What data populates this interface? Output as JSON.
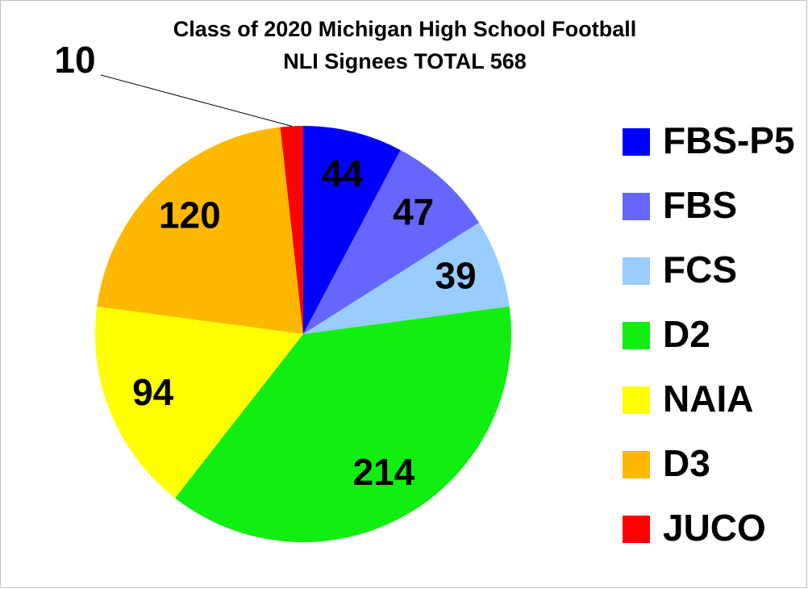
{
  "chart_data": {
    "type": "pie",
    "title": "Class of 2020 Michigan High School Football",
    "subtitle": "NLI Signees TOTAL 568",
    "categories": [
      "FBS-P5",
      "FBS",
      "FCS",
      "D2",
      "NAIA",
      "D3",
      "JUCO"
    ],
    "values": [
      44,
      47,
      39,
      214,
      94,
      120,
      10
    ],
    "colors": [
      "#0000ff",
      "#6666ff",
      "#99ccff",
      "#11ee11",
      "#ffff00",
      "#ffb800",
      "#ff0000"
    ],
    "legend": "right"
  }
}
